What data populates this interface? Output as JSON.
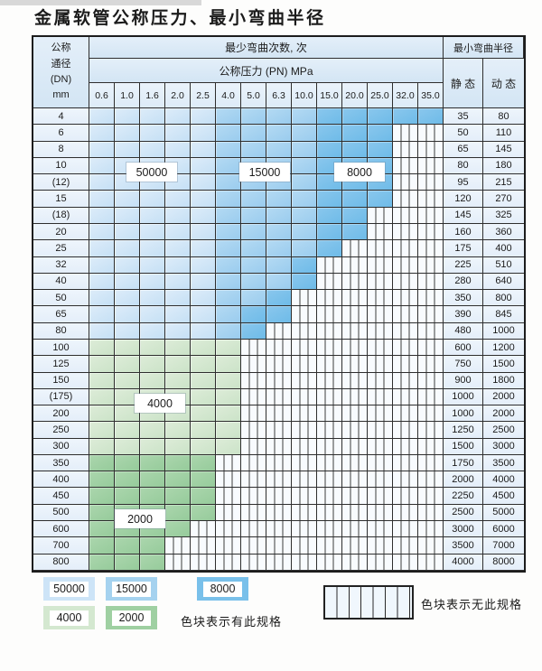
{
  "title": "金属软管公称压力、最小弯曲半径",
  "colors": {
    "blue_50000": "#cde4f7",
    "blue_15000": "#a5d2ef",
    "blue_8000": "#79c0ea",
    "green_4000": "#d4e8d0",
    "green_2000": "#9fd0a2",
    "label_cell": "#eaf3fb",
    "grid_line": "#2e2e2e"
  },
  "header": {
    "dn_lines": [
      "公称",
      "通径",
      "(DN)",
      "mm"
    ],
    "bend_cycles_label": "最少弯曲次数, 次",
    "pressure_label": "公称压力 (PN) MPa",
    "radius_label": "最小弯曲半径",
    "static_label": "静 态",
    "dynamic_label": "动 态",
    "pressures": [
      "0.6",
      "1.0",
      "1.6",
      "2.0",
      "2.5",
      "4.0",
      "5.0",
      "6.3",
      "10.0",
      "15.0",
      "20.0",
      "25.0",
      "32.0",
      "35.0"
    ]
  },
  "shade_legend_values": {
    "b1": "50000",
    "b2": "15000",
    "b3": "8000",
    "g1": "4000",
    "g2": "2000",
    "h": "无此规格"
  },
  "rows": [
    {
      "dn": "4",
      "spans": [
        [
          "b1",
          5
        ],
        [
          "b2",
          4
        ],
        [
          "b3",
          5
        ]
      ],
      "static": "35",
      "dynamic": "80"
    },
    {
      "dn": "6",
      "spans": [
        [
          "b1",
          5
        ],
        [
          "b2",
          4
        ],
        [
          "b3",
          3
        ],
        [
          "h",
          2
        ]
      ],
      "static": "50",
      "dynamic": "110"
    },
    {
      "dn": "8",
      "spans": [
        [
          "b1",
          5
        ],
        [
          "b2",
          4
        ],
        [
          "b3",
          3
        ],
        [
          "h",
          2
        ]
      ],
      "static": "65",
      "dynamic": "145"
    },
    {
      "dn": "10",
      "spans": [
        [
          "b1",
          5
        ],
        [
          "b2",
          4
        ],
        [
          "b3",
          3
        ],
        [
          "h",
          2
        ]
      ],
      "static": "80",
      "dynamic": "180"
    },
    {
      "dn": "(12)",
      "spans": [
        [
          "b1",
          5
        ],
        [
          "b2",
          4
        ],
        [
          "b3",
          3
        ],
        [
          "h",
          2
        ]
      ],
      "static": "95",
      "dynamic": "215"
    },
    {
      "dn": "15",
      "spans": [
        [
          "b1",
          5
        ],
        [
          "b2",
          4
        ],
        [
          "b3",
          3
        ],
        [
          "h",
          2
        ]
      ],
      "static": "120",
      "dynamic": "270"
    },
    {
      "dn": "(18)",
      "spans": [
        [
          "b1",
          5
        ],
        [
          "b2",
          4
        ],
        [
          "b3",
          2
        ],
        [
          "h",
          3
        ]
      ],
      "static": "145",
      "dynamic": "325"
    },
    {
      "dn": "20",
      "spans": [
        [
          "b1",
          5
        ],
        [
          "b2",
          4
        ],
        [
          "b3",
          2
        ],
        [
          "h",
          3
        ]
      ],
      "static": "160",
      "dynamic": "360"
    },
    {
      "dn": "25",
      "spans": [
        [
          "b1",
          5
        ],
        [
          "b2",
          4
        ],
        [
          "b3",
          1
        ],
        [
          "h",
          4
        ]
      ],
      "static": "175",
      "dynamic": "400"
    },
    {
      "dn": "32",
      "spans": [
        [
          "b1",
          5
        ],
        [
          "b2",
          3
        ],
        [
          "b3",
          1
        ],
        [
          "h",
          5
        ]
      ],
      "static": "225",
      "dynamic": "510"
    },
    {
      "dn": "40",
      "spans": [
        [
          "b1",
          5
        ],
        [
          "b2",
          3
        ],
        [
          "b3",
          1
        ],
        [
          "h",
          5
        ]
      ],
      "static": "280",
      "dynamic": "640"
    },
    {
      "dn": "50",
      "spans": [
        [
          "b1",
          5
        ],
        [
          "b2",
          2
        ],
        [
          "b3",
          1
        ],
        [
          "h",
          6
        ]
      ],
      "static": "350",
      "dynamic": "800"
    },
    {
      "dn": "65",
      "spans": [
        [
          "b1",
          5
        ],
        [
          "b2",
          1
        ],
        [
          "b3",
          2
        ],
        [
          "h",
          6
        ]
      ],
      "static": "390",
      "dynamic": "845"
    },
    {
      "dn": "80",
      "spans": [
        [
          "b1",
          5
        ],
        [
          "b2",
          1
        ],
        [
          "b3",
          1
        ],
        [
          "h",
          7
        ]
      ],
      "static": "480",
      "dynamic": "1000"
    },
    {
      "dn": "100",
      "spans": [
        [
          "g1",
          6
        ],
        [
          "h",
          8
        ]
      ],
      "static": "600",
      "dynamic": "1200"
    },
    {
      "dn": "125",
      "spans": [
        [
          "g1",
          6
        ],
        [
          "h",
          8
        ]
      ],
      "static": "750",
      "dynamic": "1500"
    },
    {
      "dn": "150",
      "spans": [
        [
          "g1",
          6
        ],
        [
          "h",
          8
        ]
      ],
      "static": "900",
      "dynamic": "1800"
    },
    {
      "dn": "(175)",
      "spans": [
        [
          "g1",
          6
        ],
        [
          "h",
          8
        ]
      ],
      "static": "1000",
      "dynamic": "2000"
    },
    {
      "dn": "200",
      "spans": [
        [
          "g1",
          6
        ],
        [
          "h",
          8
        ]
      ],
      "static": "1000",
      "dynamic": "2000"
    },
    {
      "dn": "250",
      "spans": [
        [
          "g1",
          6
        ],
        [
          "h",
          8
        ]
      ],
      "static": "1250",
      "dynamic": "2500"
    },
    {
      "dn": "300",
      "spans": [
        [
          "g1",
          6
        ],
        [
          "h",
          8
        ]
      ],
      "static": "1500",
      "dynamic": "3000"
    },
    {
      "dn": "350",
      "spans": [
        [
          "g2",
          5
        ],
        [
          "h",
          9
        ]
      ],
      "static": "1750",
      "dynamic": "3500"
    },
    {
      "dn": "400",
      "spans": [
        [
          "g2",
          5
        ],
        [
          "h",
          9
        ]
      ],
      "static": "2000",
      "dynamic": "4000"
    },
    {
      "dn": "450",
      "spans": [
        [
          "g2",
          5
        ],
        [
          "h",
          9
        ]
      ],
      "static": "2250",
      "dynamic": "4500"
    },
    {
      "dn": "500",
      "spans": [
        [
          "g2",
          5
        ],
        [
          "h",
          9
        ]
      ],
      "static": "2500",
      "dynamic": "5000"
    },
    {
      "dn": "600",
      "spans": [
        [
          "g2",
          4
        ],
        [
          "h",
          10
        ]
      ],
      "static": "3000",
      "dynamic": "6000"
    },
    {
      "dn": "700",
      "spans": [
        [
          "g2",
          3
        ],
        [
          "h",
          11
        ]
      ],
      "static": "3500",
      "dynamic": "7000"
    },
    {
      "dn": "800",
      "spans": [
        [
          "g2",
          3
        ],
        [
          "h",
          11
        ]
      ],
      "static": "4000",
      "dynamic": "8000"
    }
  ],
  "float_labels": [
    "50000",
    "15000",
    "8000",
    "4000",
    "2000"
  ],
  "legend": {
    "items": [
      {
        "shade": "b1",
        "label": "50000"
      },
      {
        "shade": "b2",
        "label": "15000"
      },
      {
        "shade": "b3",
        "label": "8000"
      },
      {
        "shade": "g1",
        "label": "4000"
      },
      {
        "shade": "g2",
        "label": "2000"
      }
    ],
    "present_text": "色块表示有此规格",
    "absent_text": "色块表示无此规格"
  }
}
